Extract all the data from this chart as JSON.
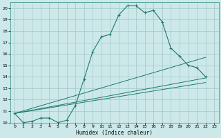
{
  "xlabel": "Humidex (Indice chaleur)",
  "bg_color": "#cce8e8",
  "grid_color": "#aacccc",
  "line_color": "#1a7a6e",
  "xlim": [
    -0.5,
    23.5
  ],
  "ylim": [
    10,
    20.5
  ],
  "yticks": [
    10,
    11,
    12,
    13,
    14,
    15,
    16,
    17,
    18,
    19,
    20
  ],
  "xticks": [
    0,
    1,
    2,
    3,
    4,
    5,
    6,
    7,
    8,
    9,
    10,
    11,
    12,
    13,
    14,
    15,
    16,
    17,
    18,
    19,
    20,
    21,
    22,
    23
  ],
  "main_series": {
    "x": [
      0,
      1,
      2,
      3,
      4,
      5,
      6,
      7,
      8,
      9,
      10,
      11,
      12,
      13,
      14,
      15,
      16,
      17,
      18,
      19,
      20,
      21,
      22
    ],
    "y": [
      10.8,
      10.0,
      10.1,
      10.4,
      10.4,
      10.0,
      10.2,
      11.5,
      13.8,
      16.2,
      17.5,
      17.7,
      19.4,
      20.2,
      20.2,
      19.6,
      19.8,
      18.8,
      16.5,
      15.8,
      15.0,
      14.8,
      14.0
    ]
  },
  "straight_lines": [
    {
      "x": [
        0,
        22
      ],
      "y": [
        10.8,
        13.9
      ]
    },
    {
      "x": [
        0,
        22
      ],
      "y": [
        10.8,
        13.5
      ]
    },
    {
      "x": [
        0,
        22
      ],
      "y": [
        10.8,
        15.7
      ]
    }
  ]
}
